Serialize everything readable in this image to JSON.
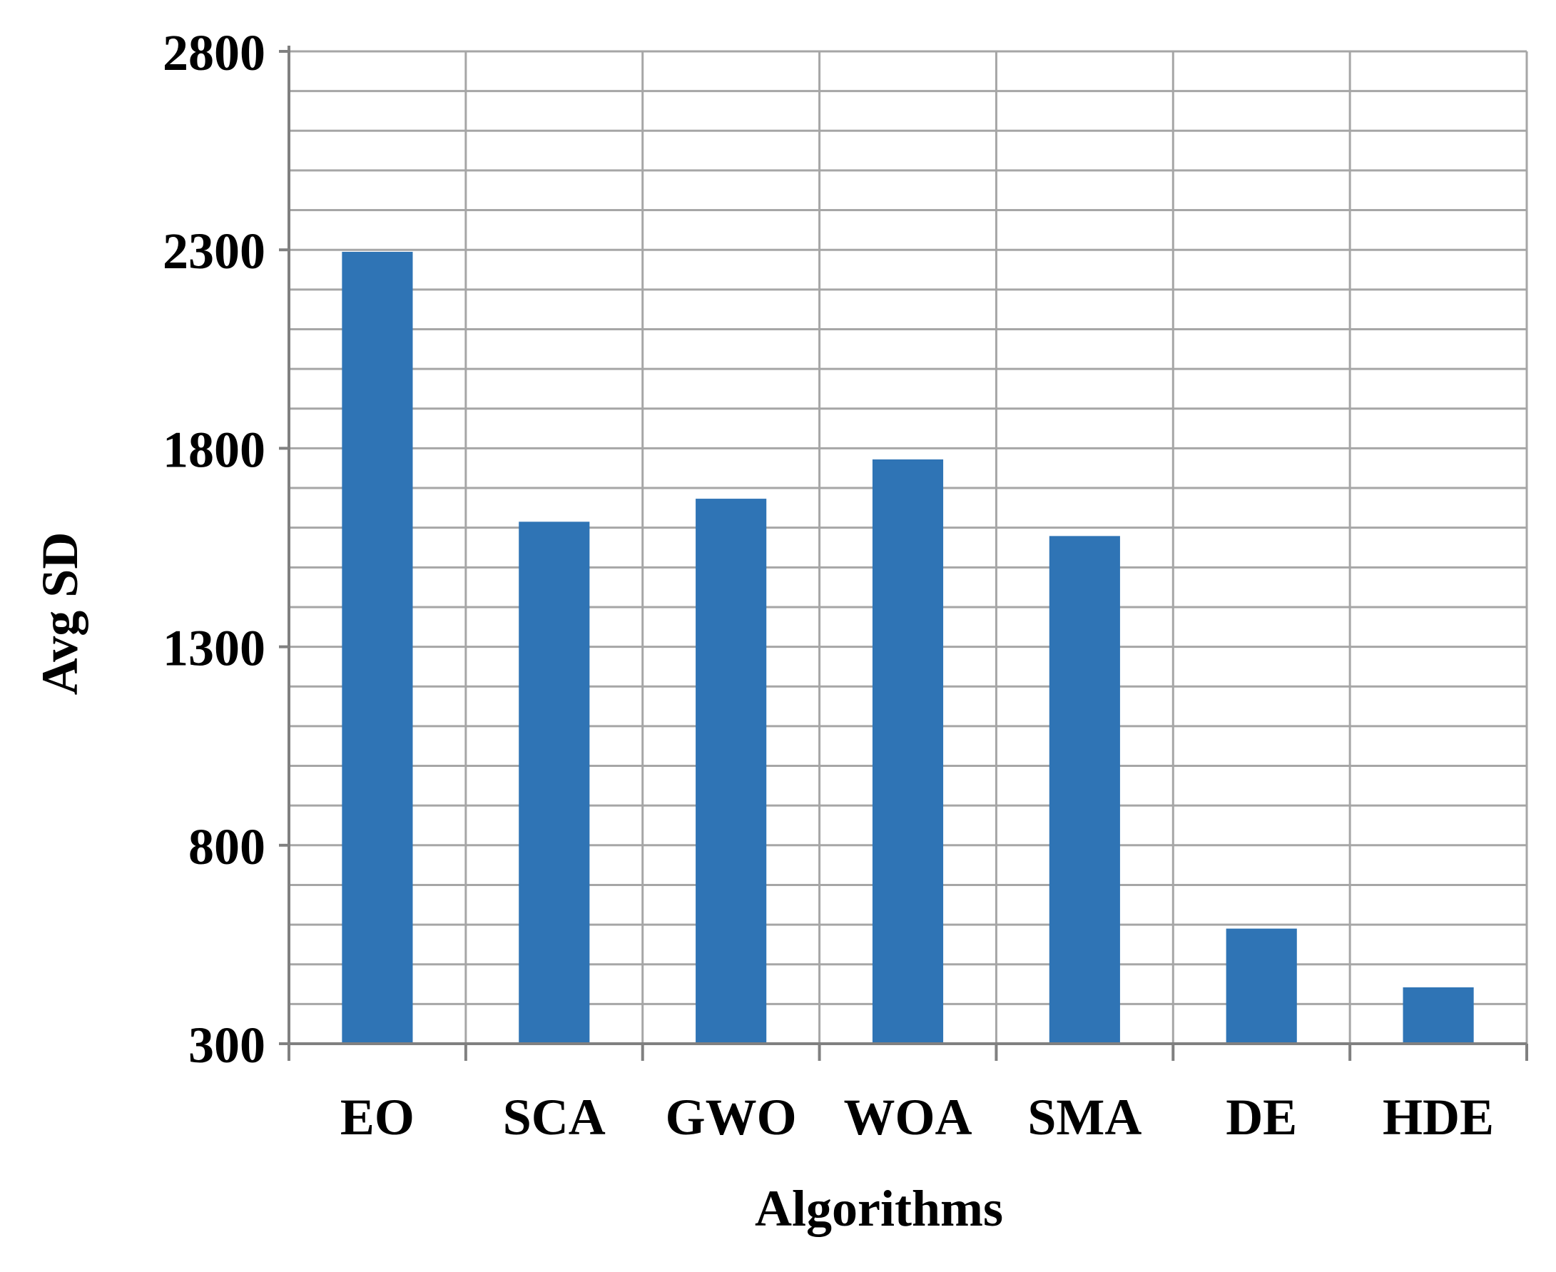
{
  "chart_data": {
    "type": "bar",
    "title": "",
    "xlabel": "Algorithms",
    "ylabel": "Avg SD",
    "categories": [
      "EO",
      "SCA",
      "GWO",
      "WOA",
      "SMA",
      "DE",
      "HDE"
    ],
    "values": [
      2295,
      1615,
      1673,
      1772,
      1579,
      590,
      442
    ],
    "ylim": [
      300,
      2800
    ],
    "yticks": [
      "300",
      "800",
      "1300",
      "1800",
      "2300",
      "2800"
    ],
    "ytick_values": [
      300,
      800,
      1300,
      1800,
      2300,
      2800
    ],
    "minor_step": 100,
    "grid": true,
    "legend": "none",
    "colors": {
      "bar": "#2f74b5",
      "grid": "#a6a6a6",
      "axis": "#808080"
    }
  }
}
